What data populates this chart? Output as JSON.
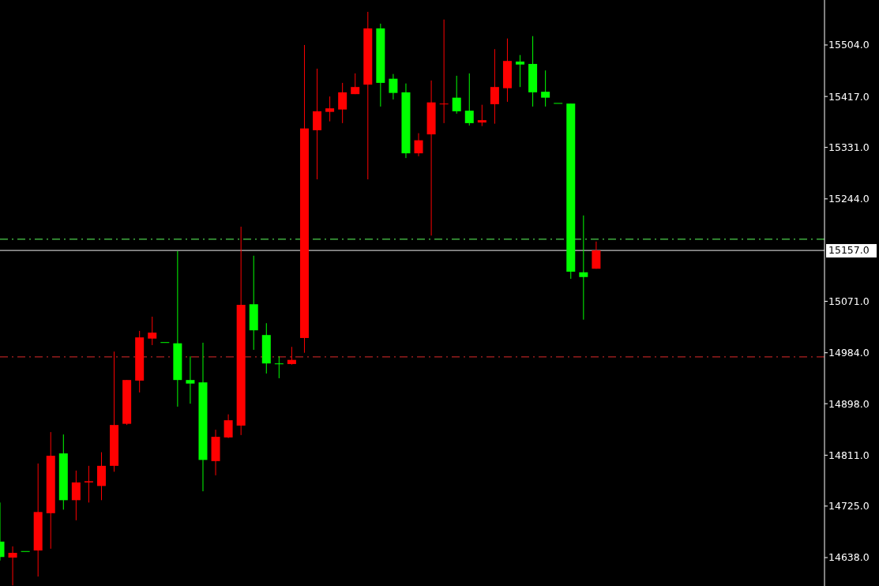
{
  "chart_data": {
    "type": "candlestick",
    "categories": [
      null,
      null,
      null,
      null,
      null,
      null,
      null,
      null,
      null,
      null,
      null,
      null,
      null,
      null,
      null,
      null,
      null,
      null,
      null,
      null,
      null,
      null,
      null,
      null,
      null,
      null,
      null,
      null,
      null,
      null,
      null,
      null,
      null,
      null,
      null,
      null,
      null,
      null,
      null,
      null,
      null,
      null,
      null,
      null,
      null,
      null,
      null,
      null,
      null,
      null,
      null,
      null,
      null,
      null,
      null,
      null,
      null,
      null,
      null,
      null,
      null,
      null,
      null,
      null,
      null,
      null
    ],
    "ohlc": [
      [
        14665,
        14731,
        14633,
        14639
      ],
      [
        14638,
        14657,
        14591,
        14646
      ],
      [
        14649,
        14649,
        14649,
        14649
      ],
      [
        14650,
        14797,
        14606,
        14715
      ],
      [
        14713,
        14850,
        14653,
        14810
      ],
      [
        14814,
        14846,
        14719,
        14735
      ],
      [
        14735,
        14785,
        14701,
        14765
      ],
      [
        14765,
        14793,
        14731,
        14767
      ],
      [
        14759,
        14816,
        14735,
        14793
      ],
      [
        14793,
        14986,
        14783,
        14862
      ],
      [
        14864,
        14938,
        14862,
        14938
      ],
      [
        14937,
        15021,
        14917,
        15010
      ],
      [
        15008,
        15045,
        14997,
        15018
      ],
      [
        15002,
        15002,
        15002,
        15002
      ],
      [
        15000,
        15156,
        14893,
        14938
      ],
      [
        14938,
        14978,
        14898,
        14932
      ],
      [
        14934,
        15001,
        14750,
        14803
      ],
      [
        14801,
        14854,
        14777,
        14842
      ],
      [
        14841,
        14880,
        14840,
        14870
      ],
      [
        14861,
        15197,
        14845,
        15065
      ],
      [
        15066,
        15148,
        14989,
        15022
      ],
      [
        15014,
        15034,
        14949,
        14966
      ],
      [
        14966,
        14978,
        14941,
        14965
      ],
      [
        14965,
        14994,
        14964,
        14972
      ],
      [
        15009,
        15504,
        14984,
        15363
      ],
      [
        15360,
        15464,
        15277,
        15392
      ],
      [
        15391,
        15417,
        15375,
        15397
      ],
      [
        15395,
        15440,
        15372,
        15424
      ],
      [
        15421,
        15456,
        15421,
        15433
      ],
      [
        15437,
        15560,
        15277,
        15532
      ],
      [
        15532,
        15540,
        15400,
        15440
      ],
      [
        15447,
        15455,
        15412,
        15423
      ],
      [
        15424,
        15439,
        15313,
        15321
      ],
      [
        15321,
        15355,
        15316,
        15343
      ],
      [
        15353,
        15444,
        15182,
        15407
      ],
      [
        15405,
        15547,
        15372,
        15404
      ],
      [
        15415,
        15452,
        15388,
        15392
      ],
      [
        15393,
        15456,
        15368,
        15372
      ],
      [
        15373,
        15403,
        15367,
        15377
      ],
      [
        15404,
        15497,
        15371,
        15433
      ],
      [
        15431,
        15515,
        15408,
        15477
      ],
      [
        15476,
        15487,
        15433,
        15471
      ],
      [
        15472,
        15519,
        15400,
        15424
      ],
      [
        15425,
        15461,
        15400,
        15415
      ],
      [
        15406,
        15406,
        15406,
        15406
      ],
      [
        15405,
        15405,
        15109,
        15121
      ],
      [
        15120,
        15216,
        15040,
        15112
      ],
      [
        15126,
        15172,
        15126,
        15157
      ],
      null,
      null,
      null,
      null,
      null,
      null,
      null,
      null,
      null,
      null,
      null,
      null,
      null,
      null,
      null,
      null,
      null,
      null
    ],
    "colors": [
      "#00ff00",
      "#ff0000",
      "#00ff00",
      "#ff0000",
      "#ff0000",
      "#00ff00",
      "#ff0000",
      "#ff0000",
      "#ff0000",
      "#ff0000",
      "#ff0000",
      "#ff0000",
      "#ff0000",
      "#00ff00",
      "#00ff00",
      "#00ff00",
      "#00ff00",
      "#ff0000",
      "#ff0000",
      "#ff0000",
      "#00ff00",
      "#00ff00",
      "#00ff00",
      "#ff0000",
      "#ff0000",
      "#ff0000",
      "#ff0000",
      "#ff0000",
      "#ff0000",
      "#ff0000",
      "#00ff00",
      "#00ff00",
      "#00ff00",
      "#ff0000",
      "#ff0000",
      "#ff0000",
      "#00ff00",
      "#00ff00",
      "#ff0000",
      "#ff0000",
      "#ff0000",
      "#00ff00",
      "#00ff00",
      "#00ff00",
      "#00ff00",
      "#00ff00",
      "#00ff00",
      "#ff0000",
      null,
      null,
      null,
      null,
      null,
      null,
      null,
      null,
      null,
      null,
      null,
      null,
      null,
      null,
      null,
      null,
      null,
      null
    ],
    "ylim": [
      14590,
      15580
    ],
    "yticks": [
      {
        "value": 14638,
        "label": "14638.0"
      },
      {
        "value": 14725,
        "label": "14725.0"
      },
      {
        "value": 14811,
        "label": "14811.0"
      },
      {
        "value": 14898,
        "label": "14898.0"
      },
      {
        "value": 14984,
        "label": "14984.0"
      },
      {
        "value": 15071,
        "label": "15071.0"
      },
      {
        "value": 15244,
        "label": "15244.0"
      },
      {
        "value": 15331,
        "label": "15331.0"
      },
      {
        "value": 15417,
        "label": "15417.0"
      },
      {
        "value": 15504,
        "label": "15504.0"
      }
    ],
    "ref_lines": [
      {
        "axis": "y",
        "value": 15176,
        "color": "#4ccf4c",
        "line_style": "dashed"
      },
      {
        "axis": "y",
        "value": 14977,
        "color": "#b22222",
        "line_style": "dashed"
      },
      {
        "axis": "y",
        "value": 15157,
        "label": "15157.0",
        "color": "#c0c0c0",
        "line_style": "solid"
      }
    ],
    "grid": false
  }
}
